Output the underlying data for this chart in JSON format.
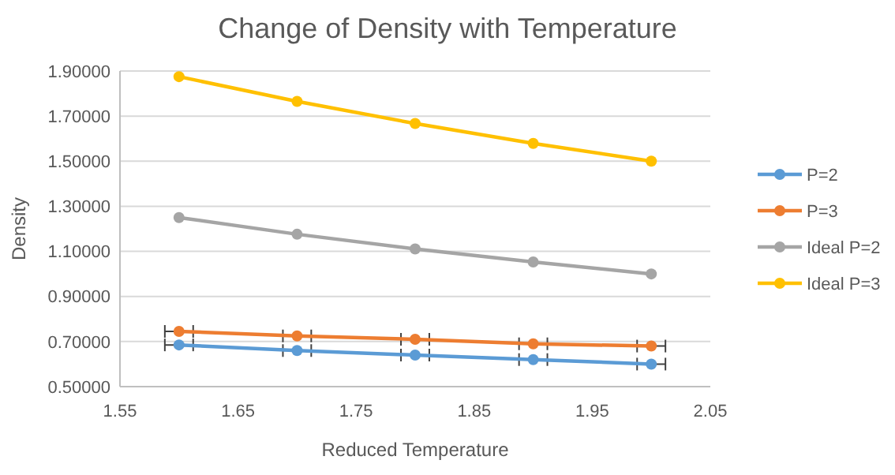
{
  "chart_data": {
    "type": "line",
    "title": "Change of Density with Temperature",
    "xlabel": "Reduced Temperature",
    "ylabel": "Density",
    "x": [
      1.6,
      1.7,
      1.8,
      1.9,
      2.0
    ],
    "series": [
      {
        "name": "P=2",
        "color": "#5b9bd5",
        "values": [
          0.685,
          0.66,
          0.64,
          0.62,
          0.6
        ],
        "xerrors": [
          0.012,
          0.012,
          0.012,
          0.012,
          0.012
        ]
      },
      {
        "name": "P=3",
        "color": "#ed7d31",
        "values": [
          0.745,
          0.725,
          0.71,
          0.69,
          0.68
        ],
        "xerrors": [
          0.012,
          0.012,
          0.012,
          0.012,
          0.012
        ]
      },
      {
        "name": "Ideal P=2",
        "color": "#a5a5a5",
        "values": [
          1.25,
          1.176,
          1.111,
          1.053,
          1.0
        ]
      },
      {
        "name": "Ideal P=3",
        "color": "#ffc000",
        "values": [
          1.875,
          1.765,
          1.667,
          1.579,
          1.5
        ]
      }
    ],
    "xlim": [
      1.55,
      2.05
    ],
    "xticks": [
      1.55,
      1.65,
      1.75,
      1.85,
      1.95,
      2.05
    ],
    "ylim": [
      0.5,
      1.9
    ],
    "yticks": [
      {
        "value": 0.5,
        "label": "0.50000"
      },
      {
        "value": 0.7,
        "label": "0.70000"
      },
      {
        "value": 0.9,
        "label": "0.90000"
      },
      {
        "value": 1.1,
        "label": "1.10000"
      },
      {
        "value": 1.3,
        "label": "1.30000"
      },
      {
        "value": 1.5,
        "label": "1.50000"
      },
      {
        "value": 1.7,
        "label": "1.70000"
      },
      {
        "value": 1.9,
        "label": "1.90000"
      }
    ],
    "grid": "y",
    "legend": "right",
    "marker": "circle",
    "line_style": "solid"
  }
}
